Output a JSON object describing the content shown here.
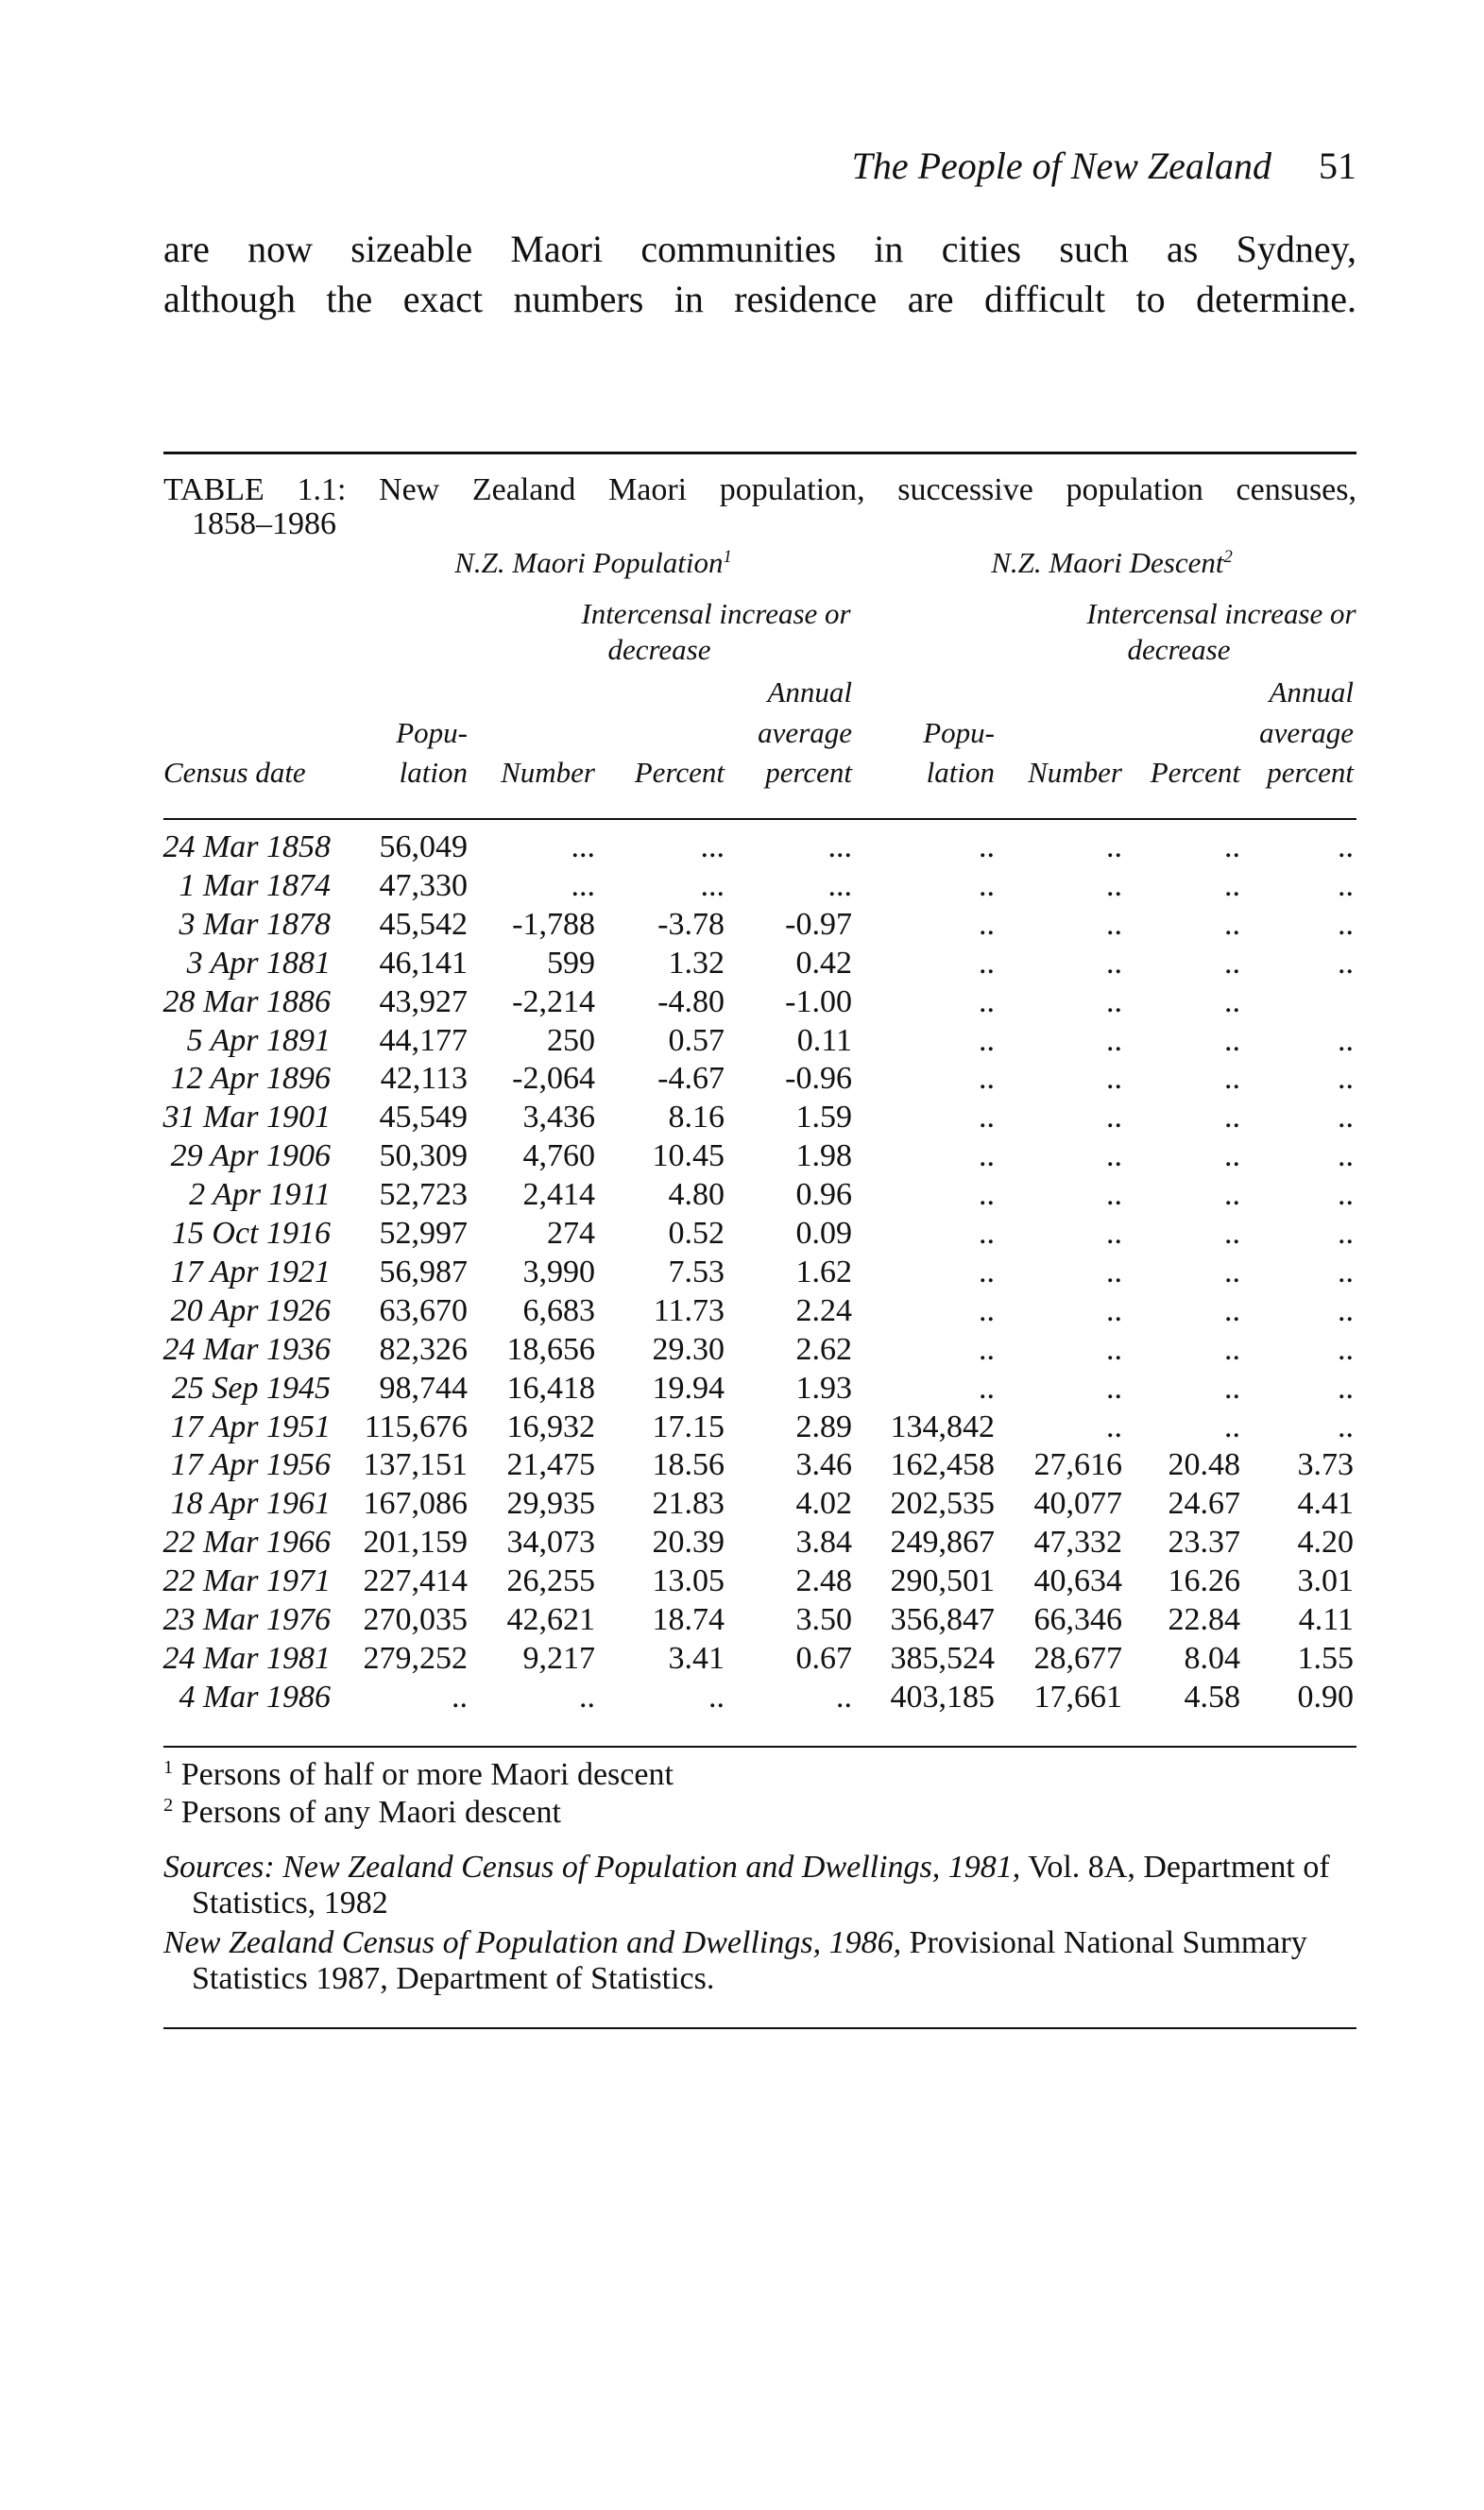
{
  "header": {
    "running_title": "The People of New Zealand",
    "page_number": "51"
  },
  "paragraph": {
    "lines": [
      "are now sizeable Maori communities in cities such as Sydney,",
      "although the exact numbers in residence are difficult to determine."
    ]
  },
  "table": {
    "title_lines": [
      "TABLE 1.1: New Zealand Maori population, successive population censuses,",
      "1858–1986"
    ],
    "groups": [
      {
        "label": "N.Z. Maori Population",
        "note": "1",
        "sub_lines": [
          "Intercensal increase or",
          "decrease"
        ]
      },
      {
        "label": "N.Z. Maori Descent",
        "note": "2",
        "sub_lines": [
          "Intercensal increase or",
          "decrease"
        ]
      }
    ],
    "columns": [
      [
        "Census date"
      ],
      [
        "Popu-",
        "lation"
      ],
      [
        "Number"
      ],
      [
        "Percent"
      ],
      [
        "Annual",
        "average",
        "percent"
      ],
      [
        "Popu-",
        "lation"
      ],
      [
        "Number"
      ],
      [
        "Percent"
      ],
      [
        "Annual",
        "average",
        "percent"
      ]
    ],
    "rows": [
      [
        "24 Mar 1858",
        "56,049",
        "...",
        "...",
        "...",
        "..",
        "..",
        "..",
        ".."
      ],
      [
        "1 Mar 1874",
        "47,330",
        "...",
        "...",
        "...",
        "..",
        "..",
        "..",
        ".."
      ],
      [
        "3 Mar 1878",
        "45,542",
        "-1,788",
        "-3.78",
        "-0.97",
        "..",
        "..",
        "..",
        ".."
      ],
      [
        "3 Apr 1881",
        "46,141",
        "599",
        "1.32",
        "0.42",
        "..",
        "..",
        "..",
        ".."
      ],
      [
        "28 Mar 1886",
        "43,927",
        "-2,214",
        "-4.80",
        "-1.00",
        "..",
        "..",
        "..",
        null
      ],
      [
        "5 Apr 1891",
        "44,177",
        "250",
        "0.57",
        "0.11",
        "..",
        "..",
        "..",
        ".."
      ],
      [
        "12 Apr 1896",
        "42,113",
        "-2,064",
        "-4.67",
        "-0.96",
        "..",
        "..",
        "..",
        ".."
      ],
      [
        "31 Mar 1901",
        "45,549",
        "3,436",
        "8.16",
        "1.59",
        "..",
        "..",
        "..",
        ".."
      ],
      [
        "29 Apr 1906",
        "50,309",
        "4,760",
        "10.45",
        "1.98",
        "..",
        "..",
        "..",
        ".."
      ],
      [
        "2 Apr 1911",
        "52,723",
        "2,414",
        "4.80",
        "0.96",
        "..",
        "..",
        "..",
        ".."
      ],
      [
        "15 Oct 1916",
        "52,997",
        "274",
        "0.52",
        "0.09",
        "..",
        "..",
        "..",
        ".."
      ],
      [
        "17 Apr 1921",
        "56,987",
        "3,990",
        "7.53",
        "1.62",
        "..",
        "..",
        "..",
        ".."
      ],
      [
        "20 Apr 1926",
        "63,670",
        "6,683",
        "11.73",
        "2.24",
        "..",
        "..",
        "..",
        ".."
      ],
      [
        "24 Mar 1936",
        "82,326",
        "18,656",
        "29.30",
        "2.62",
        "..",
        "..",
        "..",
        ".."
      ],
      [
        "25 Sep 1945",
        "98,744",
        "16,418",
        "19.94",
        "1.93",
        "..",
        "..",
        "..",
        ".."
      ],
      [
        "17 Apr 1951",
        "115,676",
        "16,932",
        "17.15",
        "2.89",
        "134,842",
        "..",
        "..",
        ".."
      ],
      [
        "17 Apr 1956",
        "137,151",
        "21,475",
        "18.56",
        "3.46",
        "162,458",
        "27,616",
        "20.48",
        "3.73"
      ],
      [
        "18 Apr 1961",
        "167,086",
        "29,935",
        "21.83",
        "4.02",
        "202,535",
        "40,077",
        "24.67",
        "4.41"
      ],
      [
        "22 Mar 1966",
        "201,159",
        "34,073",
        "20.39",
        "3.84",
        "249,867",
        "47,332",
        "23.37",
        "4.20"
      ],
      [
        "22 Mar 1971",
        "227,414",
        "26,255",
        "13.05",
        "2.48",
        "290,501",
        "40,634",
        "16.26",
        "3.01"
      ],
      [
        "23 Mar 1976",
        "270,035",
        "42,621",
        "18.74",
        "3.50",
        "356,847",
        "66,346",
        "22.84",
        "4.11"
      ],
      [
        "24 Mar 1981",
        "279,252",
        "9,217",
        "3.41",
        "0.67",
        "385,524",
        "28,677",
        "8.04",
        "1.55"
      ],
      [
        "4 Mar 1986",
        "..",
        "..",
        "..",
        "..",
        "403,185",
        "17,661",
        "4.58",
        "0.90"
      ]
    ],
    "footnotes": [
      {
        "mark": "1",
        "text": "Persons of half or more Maori descent"
      },
      {
        "mark": "2",
        "text": "Persons of any Maori descent"
      }
    ],
    "sources": [
      {
        "lines": [
          [
            "Sources:",
            "New Zealand Census of Population and Dwellings, 1981,",
            "Vol. 8A, Department of"
          ],
          [
            "Statistics, 1982"
          ]
        ]
      },
      {
        "lines": [
          [
            "New Zealand Census of Population and Dwellings, 1986,",
            "Provisional National Summary"
          ],
          [
            "Statistics 1987, Department of Statistics."
          ]
        ]
      }
    ]
  }
}
